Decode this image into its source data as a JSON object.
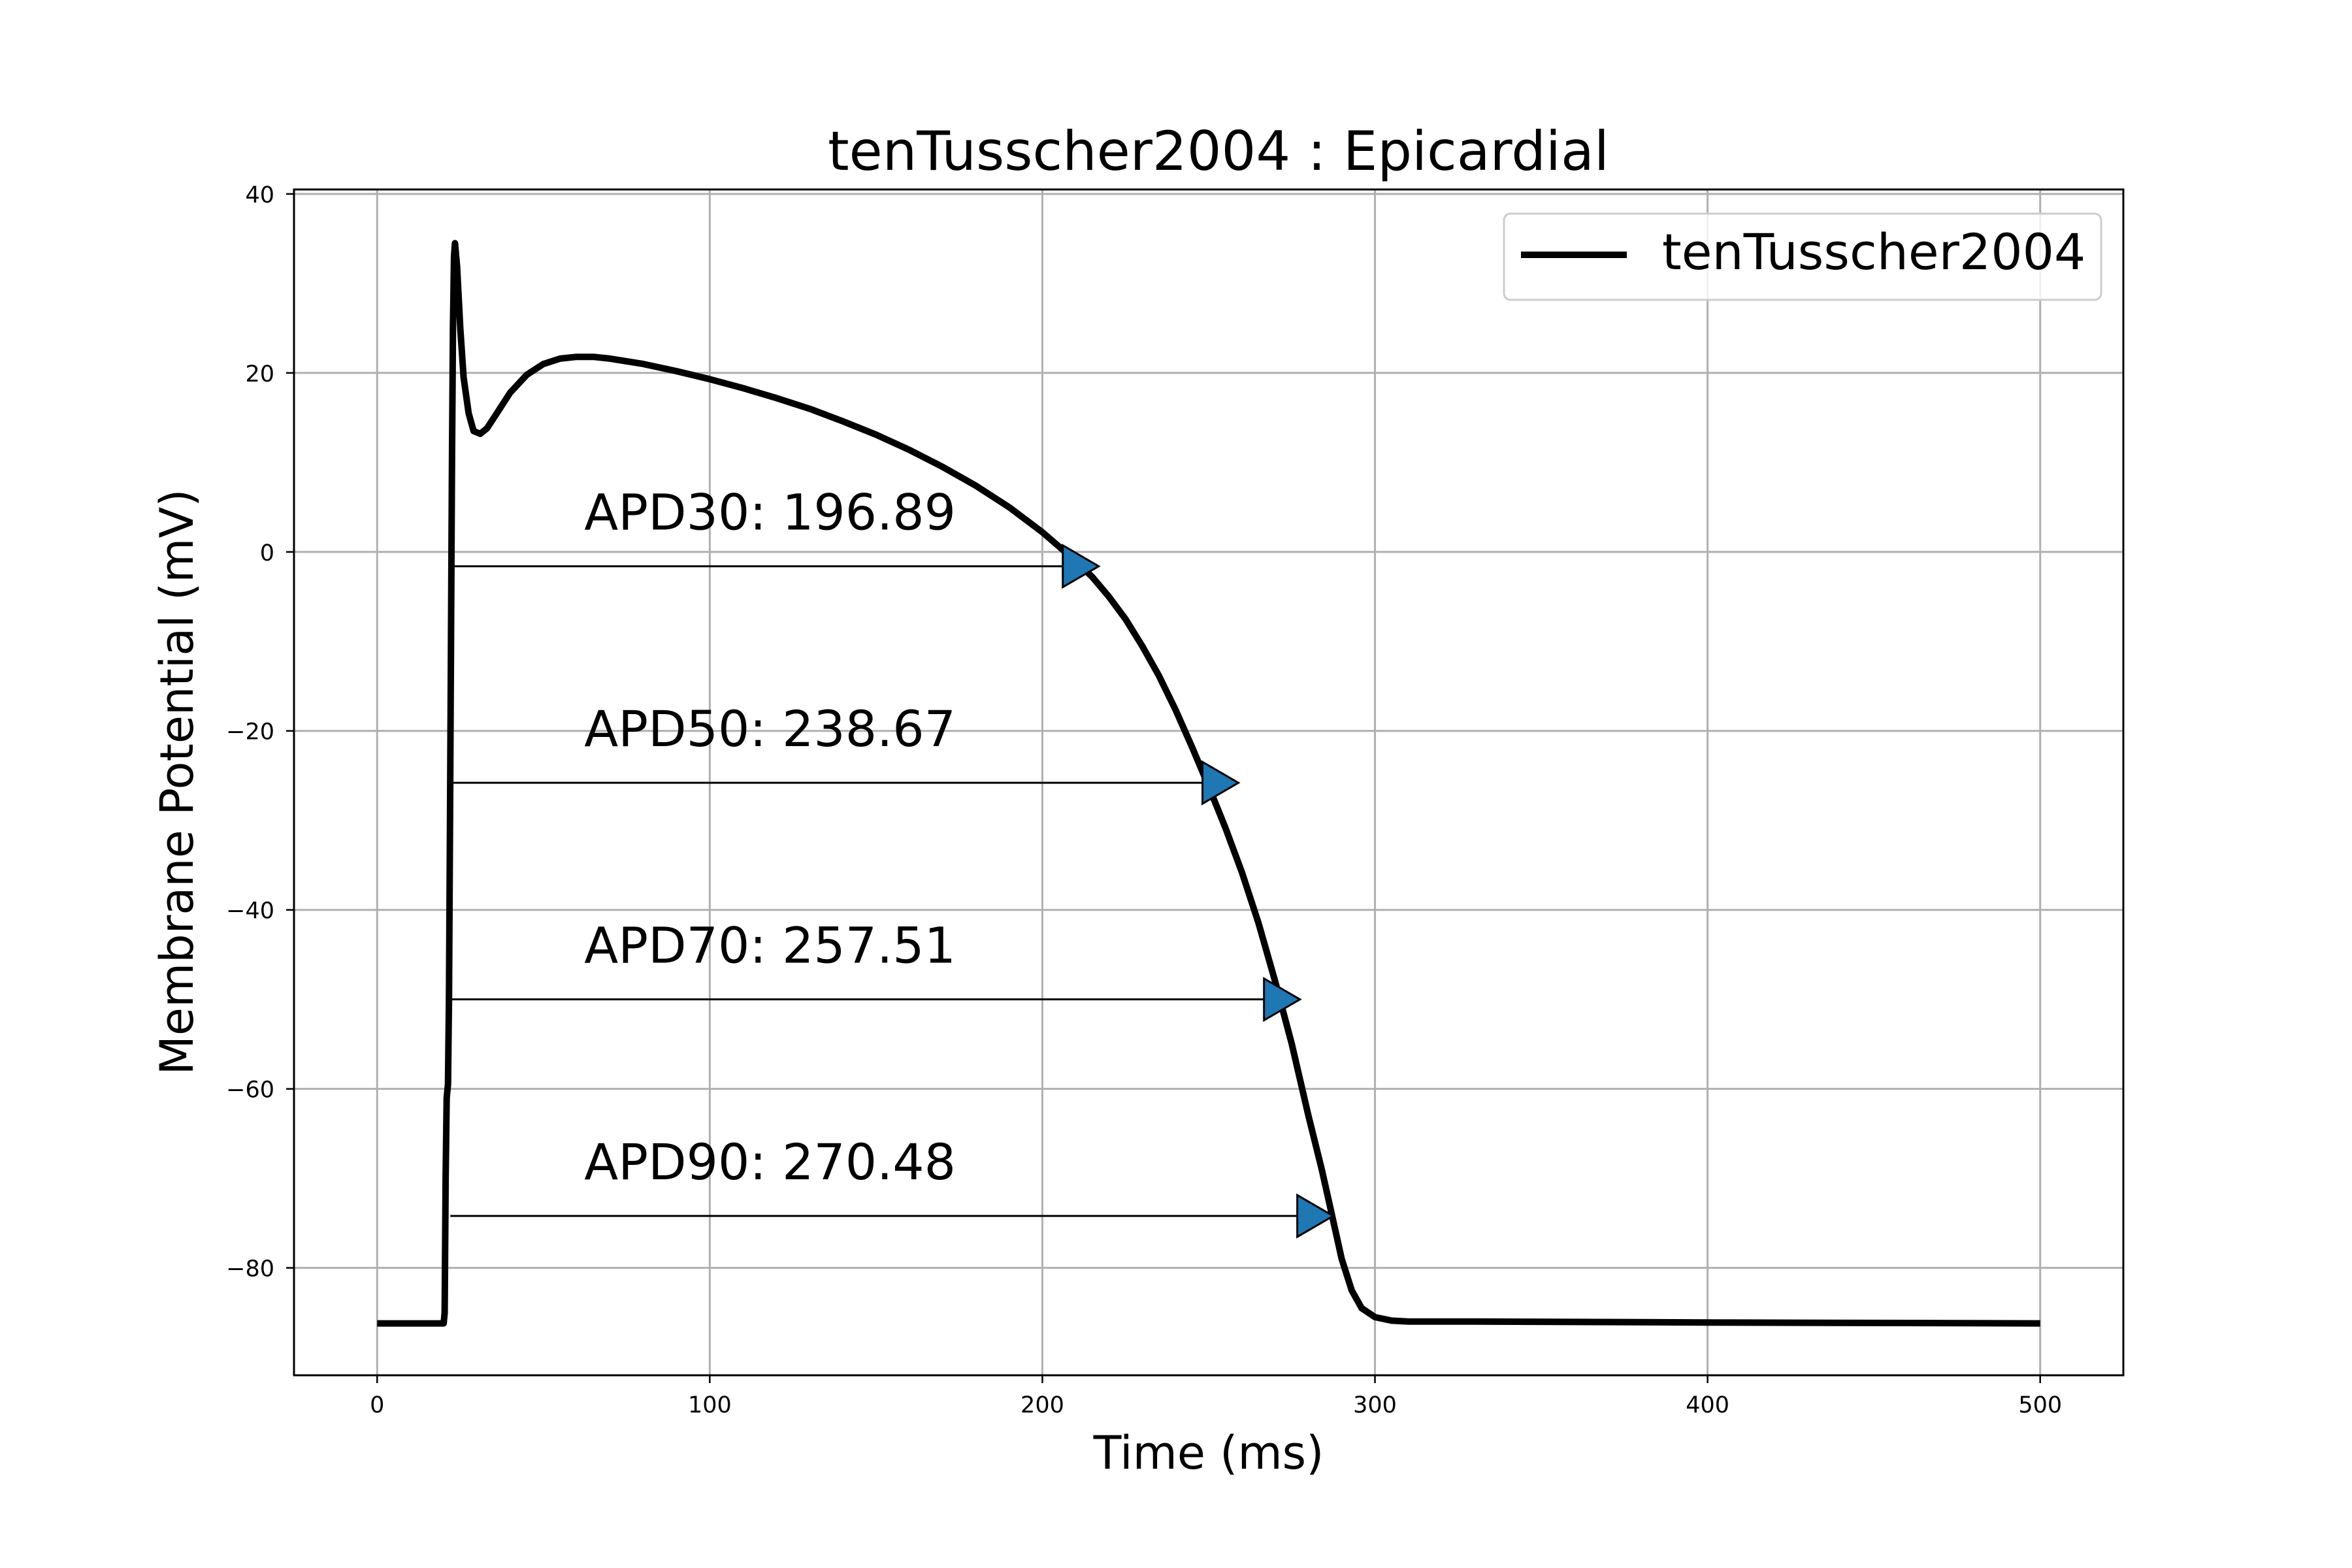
{
  "chart_data": {
    "type": "line",
    "title": "tenTusscher2004 : Epicardial",
    "xlabel": "Time (ms)",
    "ylabel": "Membrane Potential (mV)",
    "xlim": [
      -25,
      525
    ],
    "ylim": [
      -92,
      40.5
    ],
    "xticks": [
      0,
      100,
      200,
      300,
      400,
      500
    ],
    "xtick_labels": [
      "0",
      "100",
      "200",
      "300",
      "400",
      "500"
    ],
    "yticks": [
      40,
      20,
      0,
      -20,
      -40,
      -60,
      -80
    ],
    "ytick_labels": [
      "40",
      "20",
      "0",
      "−20",
      "−40",
      "−60",
      "−80"
    ],
    "grid": true,
    "legend": {
      "position": "top-right",
      "entries": [
        "tenTusscher2004"
      ]
    },
    "series": [
      {
        "name": "tenTusscher2004",
        "color": "#000000",
        "points": [
          [
            0,
            -86.2
          ],
          [
            20,
            -86.2
          ],
          [
            20.3,
            -85
          ],
          [
            20.6,
            -70
          ],
          [
            20.9,
            -61
          ],
          [
            21.3,
            -59.5
          ],
          [
            21.6,
            -50
          ],
          [
            21.9,
            -30
          ],
          [
            22.2,
            -10
          ],
          [
            22.5,
            10
          ],
          [
            22.8,
            25
          ],
          [
            23.1,
            33
          ],
          [
            23.4,
            34.5
          ],
          [
            24,
            32
          ],
          [
            25,
            25
          ],
          [
            26,
            19.5
          ],
          [
            27.5,
            15.5
          ],
          [
            29,
            13.5
          ],
          [
            31,
            13.2
          ],
          [
            33,
            13.8
          ],
          [
            36,
            15.5
          ],
          [
            40,
            17.8
          ],
          [
            45,
            19.8
          ],
          [
            50,
            21
          ],
          [
            55,
            21.6
          ],
          [
            60,
            21.8
          ],
          [
            65,
            21.8
          ],
          [
            70,
            21.6
          ],
          [
            80,
            21
          ],
          [
            90,
            20.2
          ],
          [
            100,
            19.3
          ],
          [
            110,
            18.3
          ],
          [
            120,
            17.2
          ],
          [
            130,
            16
          ],
          [
            140,
            14.6
          ],
          [
            150,
            13.1
          ],
          [
            160,
            11.4
          ],
          [
            170,
            9.5
          ],
          [
            180,
            7.4
          ],
          [
            190,
            5
          ],
          [
            200,
            2.2
          ],
          [
            210,
            -1
          ],
          [
            215,
            -2.8
          ],
          [
            220,
            -5
          ],
          [
            225,
            -7.5
          ],
          [
            230,
            -10.5
          ],
          [
            235,
            -13.8
          ],
          [
            240,
            -17.6
          ],
          [
            245,
            -21.8
          ],
          [
            250,
            -26.2
          ],
          [
            255,
            -30.8
          ],
          [
            260,
            -35.8
          ],
          [
            265,
            -41.5
          ],
          [
            270,
            -48
          ],
          [
            275,
            -55
          ],
          [
            280,
            -63
          ],
          [
            284,
            -69
          ],
          [
            287,
            -74
          ],
          [
            290,
            -79
          ],
          [
            293,
            -82.5
          ],
          [
            296,
            -84.5
          ],
          [
            300,
            -85.5
          ],
          [
            305,
            -85.9
          ],
          [
            310,
            -86
          ],
          [
            330,
            -86
          ],
          [
            400,
            -86.1
          ],
          [
            500,
            -86.2
          ]
        ]
      }
    ],
    "annotations": [
      {
        "label": "APD30: 196.89",
        "y": -1.6,
        "x_start": 22,
        "x_end": 214
      },
      {
        "label": "APD50: 238.67",
        "y": -25.8,
        "x_start": 22,
        "x_end": 256
      },
      {
        "label": "APD70: 257.51",
        "y": -50,
        "x_start": 22,
        "x_end": 274.5
      },
      {
        "label": "APD90: 270.48",
        "y": -74.2,
        "x_start": 22,
        "x_end": 284.5
      }
    ],
    "marker_color": "#1f77b4"
  }
}
